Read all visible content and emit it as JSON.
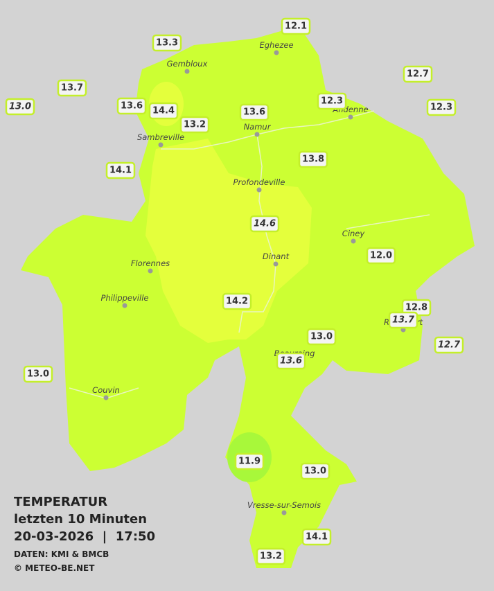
{
  "title": "TEMPERATUR",
  "subtitle": "letzten 10 Minuten",
  "datetime": "20-03-2026  |  17:50",
  "source": "DATEN: KMI & BMCB",
  "copyright": "© METEO-BE.NET",
  "cities": [
    "Eghezee",
    "Gembloux",
    "Andenne",
    "Namur",
    "Sambreville",
    "Profondeville",
    "Ciney",
    "Dinant",
    "Florennes",
    "Philippeville",
    "Beauraing",
    "Rochefort",
    "Couvin",
    "Vresse-sur-Semois"
  ],
  "stations": [
    {
      "label": "12.1",
      "italic": false
    },
    {
      "label": "13.3",
      "italic": false
    },
    {
      "label": "13.7",
      "italic": false
    },
    {
      "label": "13.0",
      "italic": true
    },
    {
      "label": "12.7",
      "italic": false
    },
    {
      "label": "12.3",
      "italic": false
    },
    {
      "label": "12.3",
      "italic": false
    },
    {
      "label": "13.6",
      "italic": false
    },
    {
      "label": "14.4",
      "italic": false
    },
    {
      "label": "13.2",
      "italic": false
    },
    {
      "label": "13.6",
      "italic": false
    },
    {
      "label": "13.8",
      "italic": false
    },
    {
      "label": "14.1",
      "italic": false
    },
    {
      "label": "14.6",
      "italic": true
    },
    {
      "label": "12.0",
      "italic": false
    },
    {
      "label": "14.2",
      "italic": false
    },
    {
      "label": "12.8",
      "italic": false
    },
    {
      "label": "13.7",
      "italic": true
    },
    {
      "label": "13.0",
      "italic": false
    },
    {
      "label": "12.7",
      "italic": true
    },
    {
      "label": "13.6",
      "italic": true
    },
    {
      "label": "13.0",
      "italic": false
    },
    {
      "label": "11.9",
      "italic": false
    },
    {
      "label": "13.0",
      "italic": false
    },
    {
      "label": "14.1",
      "italic": false
    },
    {
      "label": "13.2",
      "italic": false
    }
  ]
}
